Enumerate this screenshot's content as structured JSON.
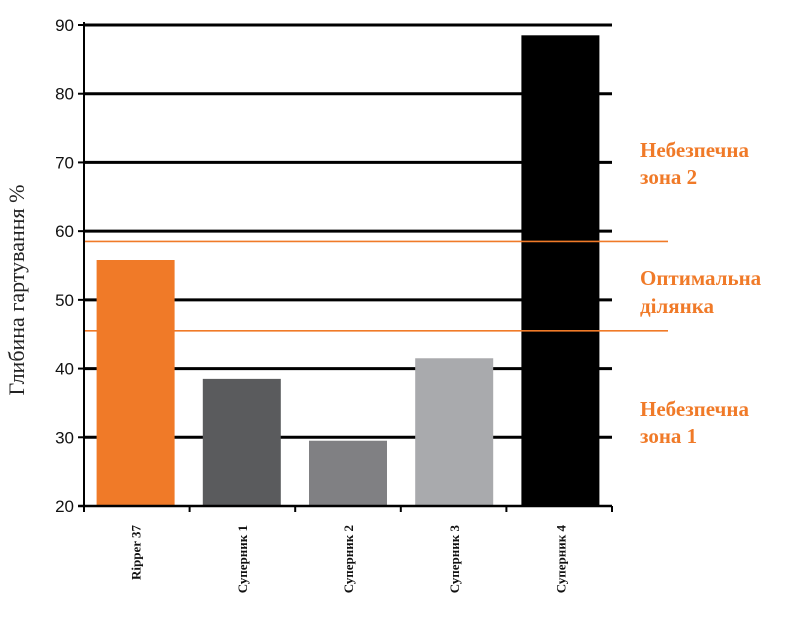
{
  "chart_data": {
    "type": "bar",
    "title": "",
    "xlabel": "",
    "ylabel": "Глибина гартування %",
    "categories": [
      "Ripper 37",
      "Суперник 1",
      "Суперник 2",
      "Суперник 3",
      "Суперник 4"
    ],
    "values": [
      55.8,
      38.5,
      29.5,
      41.5,
      88.5
    ],
    "bar_colors": [
      "#f07a28",
      "#5a5b5d",
      "#808083",
      "#a9aaad",
      "#000000"
    ],
    "ylim": [
      20,
      90
    ],
    "yticks": [
      20,
      30,
      40,
      50,
      60,
      70,
      80,
      90
    ],
    "grid": true,
    "reference_lines": [
      {
        "value": 58.5,
        "color": "#f07a28"
      },
      {
        "value": 45.5,
        "color": "#f07a28"
      }
    ],
    "annotations": [
      {
        "lines": [
          "Небезпечна",
          "зона 2"
        ],
        "color": "#f07a28"
      },
      {
        "lines": [
          "Оптимальна",
          "ділянка"
        ],
        "color": "#f07a28"
      },
      {
        "lines": [
          "Небезпечна",
          "зона 1"
        ],
        "color": "#f07a28"
      }
    ]
  }
}
